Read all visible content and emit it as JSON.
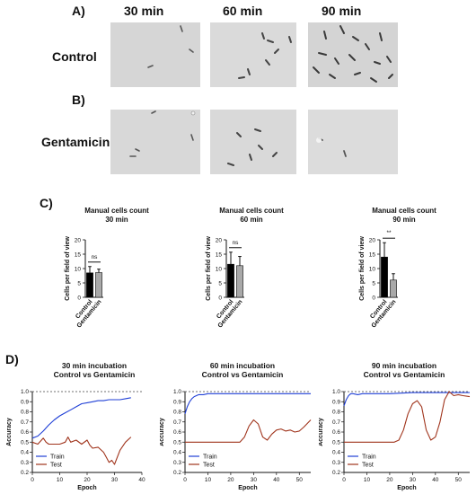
{
  "panel_a": {
    "letter": "A)",
    "times": [
      "30 min",
      "60 min",
      "90 min"
    ],
    "row_label": "Control"
  },
  "panel_b": {
    "letter": "B)",
    "row_label": "Gentamicin"
  },
  "panel_c": {
    "letter": "C)"
  },
  "panel_d": {
    "letter": "D)"
  },
  "chart_data": [
    {
      "type": "bar",
      "title": "Manual cells count",
      "subtitle": "30 min",
      "ylabel": "Cells per field of view",
      "xlabel": "",
      "categories": [
        "Control",
        "Gentamicin"
      ],
      "values": [
        8.5,
        8.6
      ],
      "errors": [
        2.2,
        1.2
      ],
      "colors": [
        "#000000",
        "#a9a9a9"
      ],
      "ylim": [
        0,
        20
      ],
      "yticks": [
        0,
        5,
        10,
        15,
        20
      ],
      "significance": "ns"
    },
    {
      "type": "bar",
      "title": "Manual cells count",
      "subtitle": "60 min",
      "ylabel": "Cells per field of view",
      "xlabel": "",
      "categories": [
        "Control",
        "Gentamicin"
      ],
      "values": [
        11.5,
        11.0
      ],
      "errors": [
        4.2,
        3.2
      ],
      "colors": [
        "#000000",
        "#a9a9a9"
      ],
      "ylim": [
        0,
        20
      ],
      "yticks": [
        0,
        5,
        10,
        15,
        20
      ],
      "significance": "ns"
    },
    {
      "type": "bar",
      "title": "Manual cells count",
      "subtitle": "90 min",
      "ylabel": "Cells per field of view",
      "xlabel": "",
      "categories": [
        "Control",
        "Gentamicin"
      ],
      "values": [
        14.0,
        6.0
      ],
      "errors": [
        5.0,
        2.2
      ],
      "colors": [
        "#000000",
        "#a9a9a9"
      ],
      "ylim": [
        0,
        20
      ],
      "yticks": [
        0,
        5,
        10,
        15,
        20
      ],
      "significance": "**"
    },
    {
      "type": "line",
      "title": "30 min incubation",
      "subtitle": "Control vs Gentamicin",
      "xlabel": "Epoch",
      "ylabel": "Accuracy",
      "xlim": [
        0,
        40
      ],
      "ylim": [
        0.2,
        1.0
      ],
      "xticks": [
        0,
        10,
        20,
        30,
        40
      ],
      "yticks": [
        0.2,
        0.3,
        0.4,
        0.5,
        0.6,
        0.7,
        0.8,
        0.9,
        1.0
      ],
      "reference_line": 1.0,
      "legend": "bottom-left",
      "series": [
        {
          "name": "Train",
          "color": "#1f3fd6",
          "x": [
            0,
            2,
            4,
            6,
            8,
            10,
            12,
            14,
            16,
            18,
            20,
            22,
            24,
            26,
            28,
            30,
            32,
            34,
            36
          ],
          "y": [
            0.54,
            0.56,
            0.61,
            0.67,
            0.72,
            0.76,
            0.79,
            0.82,
            0.85,
            0.88,
            0.89,
            0.9,
            0.91,
            0.91,
            0.92,
            0.92,
            0.92,
            0.93,
            0.94
          ]
        },
        {
          "name": "Test",
          "color": "#a0341c",
          "x": [
            0,
            2,
            4,
            5,
            6,
            8,
            10,
            12,
            13,
            14,
            16,
            18,
            20,
            21,
            22,
            24,
            26,
            27,
            28,
            29,
            30,
            32,
            34,
            36
          ],
          "y": [
            0.5,
            0.48,
            0.54,
            0.5,
            0.48,
            0.48,
            0.48,
            0.5,
            0.55,
            0.5,
            0.52,
            0.48,
            0.52,
            0.47,
            0.44,
            0.45,
            0.4,
            0.35,
            0.3,
            0.32,
            0.28,
            0.42,
            0.5,
            0.55
          ]
        }
      ]
    },
    {
      "type": "line",
      "title": "60 min incubation",
      "subtitle": "Control vs Gentamicin",
      "xlabel": "Epoch",
      "ylabel": "Accuracy",
      "xlim": [
        0,
        55
      ],
      "ylim": [
        0.2,
        1.0
      ],
      "xticks": [
        0,
        10,
        20,
        30,
        40,
        50
      ],
      "yticks": [
        0.2,
        0.3,
        0.4,
        0.5,
        0.6,
        0.7,
        0.8,
        0.9,
        1.0
      ],
      "reference_line": 1.0,
      "legend": "bottom-left",
      "series": [
        {
          "name": "Train",
          "color": "#1f3fd6",
          "x": [
            0,
            1,
            2,
            3,
            4,
            5,
            6,
            8,
            10,
            15,
            20,
            30,
            40,
            50,
            55
          ],
          "y": [
            0.78,
            0.85,
            0.9,
            0.93,
            0.95,
            0.96,
            0.97,
            0.97,
            0.98,
            0.98,
            0.98,
            0.98,
            0.98,
            0.98,
            0.98
          ]
        },
        {
          "name": "Test",
          "color": "#a0341c",
          "x": [
            0,
            5,
            10,
            15,
            20,
            24,
            26,
            28,
            30,
            32,
            34,
            36,
            38,
            40,
            42,
            44,
            46,
            48,
            50,
            52,
            55
          ],
          "y": [
            0.5,
            0.5,
            0.5,
            0.5,
            0.5,
            0.5,
            0.55,
            0.66,
            0.72,
            0.68,
            0.55,
            0.52,
            0.58,
            0.62,
            0.63,
            0.61,
            0.62,
            0.6,
            0.61,
            0.65,
            0.72
          ]
        }
      ]
    },
    {
      "type": "line",
      "title": "90 min incubation",
      "subtitle": "Control vs Gentamicin",
      "xlabel": "Epoch",
      "ylabel": "Accuracy",
      "xlim": [
        0,
        55
      ],
      "ylim": [
        0.2,
        1.0
      ],
      "xticks": [
        0,
        10,
        20,
        30,
        40,
        50
      ],
      "yticks": [
        0.2,
        0.3,
        0.4,
        0.5,
        0.6,
        0.7,
        0.8,
        0.9,
        1.0
      ],
      "reference_line": 1.0,
      "legend": "bottom-left",
      "series": [
        {
          "name": "Train",
          "color": "#1f3fd6",
          "x": [
            0,
            1,
            2,
            3,
            4,
            6,
            8,
            10,
            20,
            30,
            40,
            50,
            55
          ],
          "y": [
            0.86,
            0.92,
            0.96,
            0.98,
            0.98,
            0.97,
            0.98,
            0.98,
            0.98,
            0.99,
            0.99,
            0.99,
            0.99
          ]
        },
        {
          "name": "Test",
          "color": "#a0341c",
          "x": [
            0,
            5,
            10,
            15,
            20,
            22,
            24,
            26,
            28,
            30,
            32,
            34,
            36,
            38,
            40,
            42,
            44,
            46,
            48,
            50,
            52,
            55
          ],
          "y": [
            0.5,
            0.5,
            0.5,
            0.5,
            0.5,
            0.5,
            0.52,
            0.62,
            0.78,
            0.88,
            0.91,
            0.85,
            0.62,
            0.52,
            0.55,
            0.7,
            0.92,
            1.0,
            0.96,
            0.97,
            0.96,
            0.95
          ]
        }
      ]
    }
  ]
}
